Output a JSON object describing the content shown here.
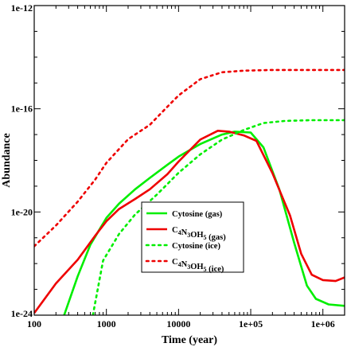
{
  "chart_data": {
    "type": "line",
    "xlabel": "Time (year)",
    "ylabel": "Abundance",
    "x_scale": "log",
    "y_scale": "log",
    "xlim": [
      100,
      2000000
    ],
    "ylim": [
      1e-24,
      1e-12
    ],
    "x_ticks": [
      {
        "value": 100,
        "label": "100"
      },
      {
        "value": 1000,
        "label": "1000"
      },
      {
        "value": 10000,
        "label": "10000"
      },
      {
        "value": 100000,
        "label": "1e+05"
      },
      {
        "value": 1000000,
        "label": "1e+06"
      }
    ],
    "y_ticks": [
      {
        "value": 1e-24,
        "label": "1e-24"
      },
      {
        "value": 1e-20,
        "label": "1e-20"
      },
      {
        "value": 1e-16,
        "label": "1e-16"
      },
      {
        "value": 1e-12,
        "label": "1e-12"
      }
    ],
    "legend_position": "lower-center",
    "series": [
      {
        "name": "Cytosine (gas)",
        "label_parts": [
          {
            "t": "Cytosine (gas)"
          }
        ],
        "color": "#00ee00",
        "dash": "solid",
        "points": [
          [
            260,
            1e-24
          ],
          [
            400,
            3.2e-23
          ],
          [
            600,
            5.4e-22
          ],
          [
            1000,
            5.9e-21
          ],
          [
            1500,
            2.1e-20
          ],
          [
            2500,
            7.6e-20
          ],
          [
            4000,
            2.1e-19
          ],
          [
            7000,
            6.7e-19
          ],
          [
            10000,
            1.4e-18
          ],
          [
            20000,
            4.3e-18
          ],
          [
            40000,
            1e-17
          ],
          [
            60000,
            1.3e-17
          ],
          [
            100000,
            1.2e-17
          ],
          [
            150000,
            3.2e-18
          ],
          [
            250000,
            7.3e-20
          ],
          [
            400000,
            6.4e-22
          ],
          [
            600000,
            1.4e-23
          ],
          [
            800000,
            4.3e-24
          ],
          [
            1200000,
            2.6e-24
          ],
          [
            2000000,
            2.3e-24
          ]
        ]
      },
      {
        "name": "C4N3OH5 (gas)",
        "label_parts": [
          {
            "t": "C"
          },
          {
            "t": "4",
            "sub": true
          },
          {
            "t": "N"
          },
          {
            "t": "3",
            "sub": true
          },
          {
            "t": "OH"
          },
          {
            "t": "5",
            "sub": true
          },
          {
            "t": " (gas)"
          }
        ],
        "color": "#ee0000",
        "dash": "solid",
        "points": [
          [
            100,
            1.2e-24
          ],
          [
            200,
            1.7e-23
          ],
          [
            400,
            1.4e-22
          ],
          [
            700,
            1.2e-21
          ],
          [
            1000,
            4.4e-21
          ],
          [
            1500,
            1.3e-20
          ],
          [
            2500,
            3.2e-20
          ],
          [
            4000,
            7.6e-20
          ],
          [
            7000,
            2.9e-19
          ],
          [
            10000,
            9e-19
          ],
          [
            20000,
            6.4e-18
          ],
          [
            35000,
            1.4e-17
          ],
          [
            50000,
            1.3e-17
          ],
          [
            80000,
            9.3e-18
          ],
          [
            120000,
            5.7e-18
          ],
          [
            200000,
            3.2e-19
          ],
          [
            350000,
            7.3e-21
          ],
          [
            500000,
            2.4e-22
          ],
          [
            700000,
            3.7e-23
          ],
          [
            1000000,
            2.3e-23
          ],
          [
            1500000,
            2.1e-23
          ],
          [
            2000000,
            2.9e-23
          ]
        ]
      },
      {
        "name": "Cytosine (ice)",
        "label_parts": [
          {
            "t": "Cytosine (ice)"
          }
        ],
        "color": "#00ee00",
        "dash": "dotted",
        "points": [
          [
            650,
            1e-24
          ],
          [
            900,
            1.3e-22
          ],
          [
            1500,
            1.4e-21
          ],
          [
            2500,
            8e-21
          ],
          [
            5000,
            4.7e-20
          ],
          [
            10000,
            3.3e-19
          ],
          [
            20000,
            1.7e-18
          ],
          [
            40000,
            6.4e-18
          ],
          [
            80000,
            1.5e-17
          ],
          [
            150000,
            2.8e-17
          ],
          [
            300000,
            3.4e-17
          ],
          [
            700000,
            3.6e-17
          ],
          [
            2000000,
            3.6e-17
          ]
        ]
      },
      {
        "name": "C4N3OH5 (ice)",
        "label_parts": [
          {
            "t": "C"
          },
          {
            "t": "4",
            "sub": true
          },
          {
            "t": "N"
          },
          {
            "t": "3",
            "sub": true
          },
          {
            "t": "OH"
          },
          {
            "t": "5",
            "sub": true
          },
          {
            "t": " (ice)"
          }
        ],
        "color": "#ee0000",
        "dash": "dotted",
        "points": [
          [
            100,
            4.7e-22
          ],
          [
            200,
            3e-21
          ],
          [
            400,
            2.5e-20
          ],
          [
            700,
            1.8e-19
          ],
          [
            1000,
            8e-19
          ],
          [
            2000,
            6.6e-18
          ],
          [
            4000,
            2.4e-17
          ],
          [
            7000,
            1.2e-16
          ],
          [
            10000,
            3.3e-16
          ],
          [
            20000,
            1.4e-15
          ],
          [
            40000,
            2.6e-15
          ],
          [
            80000,
            3e-15
          ],
          [
            200000,
            3.2e-15
          ],
          [
            500000,
            3.2e-15
          ],
          [
            2000000,
            3.2e-15
          ]
        ]
      }
    ]
  }
}
